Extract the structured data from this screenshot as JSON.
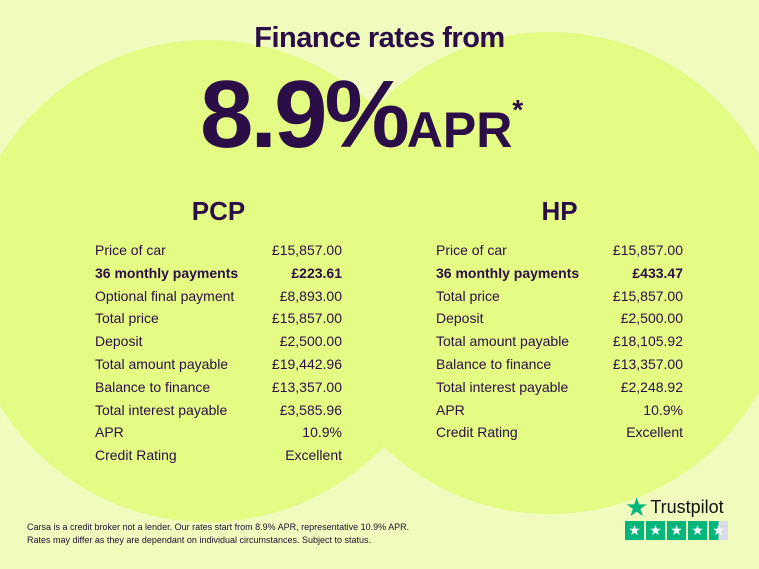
{
  "headline": "Finance rates from",
  "rate": "8.9%",
  "rate_suffix": "APR",
  "asterisk": "*",
  "pcp": {
    "title": "PCP",
    "rows": [
      [
        "Price of car",
        "£15,857.00"
      ],
      [
        "36 monthly payments",
        "£223.61"
      ],
      [
        "Optional final payment",
        "£8,893.00"
      ],
      [
        "Total price",
        "£15,857.00"
      ],
      [
        "Deposit",
        "£2,500.00"
      ],
      [
        "Total amount payable",
        "£19,442.96"
      ],
      [
        "Balance to finance",
        "£13,357.00"
      ],
      [
        "Total interest payable",
        "£3,585.96"
      ],
      [
        "APR",
        "10.9%"
      ],
      [
        "Credit Rating",
        "Excellent"
      ]
    ]
  },
  "hp": {
    "title": "HP",
    "rows": [
      [
        "Price of car",
        "£15,857.00"
      ],
      [
        "36 monthly payments",
        "£433.47"
      ],
      [
        "Total price",
        "£15,857.00"
      ],
      [
        "Deposit",
        "£2,500.00"
      ],
      [
        "Total amount payable",
        "£18,105.92"
      ],
      [
        "Balance to finance",
        "£13,357.00"
      ],
      [
        "Total interest payable",
        "£2,248.92"
      ],
      [
        "APR",
        "10.9%"
      ],
      [
        "Credit Rating",
        "Excellent"
      ]
    ]
  },
  "disclaimer": [
    "Carsa is a credit broker not a lender. Our rates start from 8.9% APR, representative 10.9% APR.",
    "Rates may differ as they are dependant on individual circumstances. Subject to status."
  ],
  "trustpilot": {
    "label": "Trustpilot",
    "rating_stars": 4.5,
    "color": "#00b67a"
  }
}
